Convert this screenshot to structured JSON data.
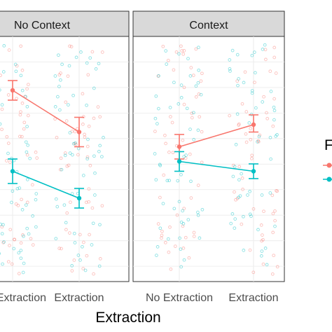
{
  "chart_data": {
    "type": "scatter",
    "xlabel": "Extraction",
    "categories": [
      "No Extraction",
      "Extraction"
    ],
    "ylim": [
      0,
      1
    ],
    "grid": true,
    "legend_title": "F",
    "legend_placement": "right",
    "facets": [
      {
        "label": "No Context",
        "series": [
          {
            "color": "#F8766D",
            "values": [
              0.78,
              0.61
            ],
            "error_low": [
              0.74,
              0.55
            ],
            "error_high": [
              0.82,
              0.67
            ]
          },
          {
            "color": "#00BFC4",
            "values": [
              0.45,
              0.34
            ],
            "error_low": [
              0.4,
              0.3
            ],
            "error_high": [
              0.5,
              0.38
            ]
          }
        ]
      },
      {
        "label": "Context",
        "series": [
          {
            "color": "#F8766D",
            "values": [
              0.55,
              0.64
            ],
            "error_low": [
              0.5,
              0.61
            ],
            "error_high": [
              0.6,
              0.68
            ]
          },
          {
            "color": "#00BFC4",
            "values": [
              0.49,
              0.45
            ],
            "error_low": [
              0.45,
              0.42
            ],
            "error_high": [
              0.53,
              0.48
            ]
          }
        ]
      }
    ]
  }
}
